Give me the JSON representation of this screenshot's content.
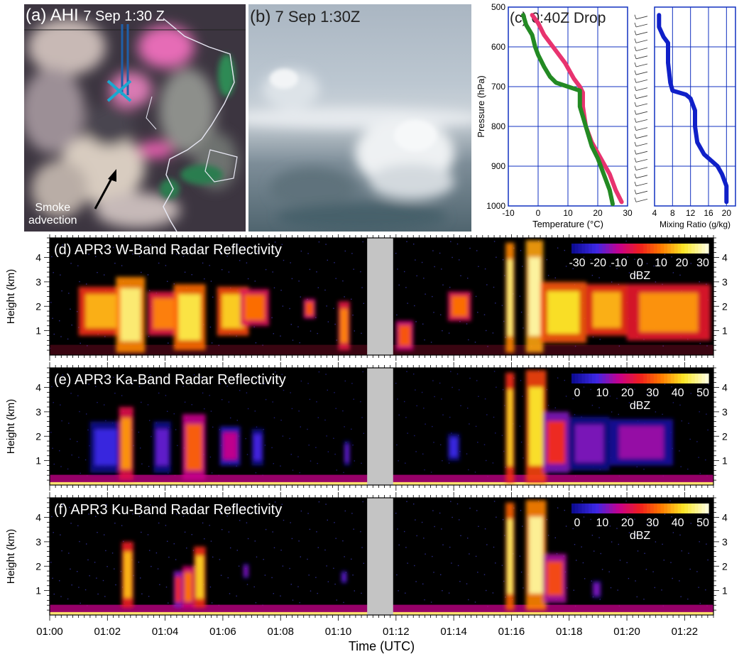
{
  "panel_a": {
    "tag": "(a)",
    "title": "AHI",
    "time": "7 Sep 1:30 Z",
    "annotation_line1": "Smoke",
    "annotation_line2": "advection"
  },
  "panel_b": {
    "tag": "(b)",
    "time": "7 Sep 1:30Z"
  },
  "chart_data": [
    {
      "type": "line",
      "panel": "(c)",
      "title": "(c)  0:40Z Drop",
      "xlabel": "Temperature (°C)",
      "ylabel": "Pressure (hPa)",
      "xlim": [
        -10,
        30
      ],
      "ylim": [
        1000,
        500
      ],
      "x_ticks": [
        -10,
        0,
        10,
        20,
        30
      ],
      "y_ticks": [
        500,
        600,
        700,
        800,
        900,
        1000
      ],
      "grid": true,
      "series": [
        {
          "name": "",
          "color": "#e8336f",
          "points": [
            [
              -2,
              520
            ],
            [
              0,
              540
            ],
            [
              2,
              570
            ],
            [
              5,
              600
            ],
            [
              9,
              640
            ],
            [
              12,
              680
            ],
            [
              14,
              700
            ],
            [
              15,
              715
            ],
            [
              15,
              750
            ],
            [
              16,
              800
            ],
            [
              18,
              840
            ],
            [
              21,
              880
            ],
            [
              24,
              920
            ],
            [
              26,
              960
            ],
            [
              28,
              990
            ]
          ]
        },
        {
          "name": "",
          "color": "#238a23",
          "points": [
            [
              -5,
              520
            ],
            [
              -4,
              545
            ],
            [
              -2,
              570
            ],
            [
              -1,
              600
            ],
            [
              0,
              620
            ],
            [
              2,
              650
            ],
            [
              4,
              675
            ],
            [
              6,
              690
            ],
            [
              10,
              700
            ],
            [
              14,
              710
            ],
            [
              14,
              750
            ],
            [
              16,
              800
            ],
            [
              18,
              850
            ],
            [
              20,
              880
            ],
            [
              22,
              920
            ],
            [
              24,
              960
            ],
            [
              25,
              995
            ]
          ]
        }
      ]
    },
    {
      "type": "line",
      "panel": "(c)",
      "xlabel": "Mixing Ratio (g/kg)",
      "xlim": [
        4,
        22
      ],
      "ylim": [
        1000,
        500
      ],
      "x_ticks": [
        4,
        8,
        12,
        16,
        20
      ],
      "grid": true,
      "series": [
        {
          "name": "",
          "color": "#1020c8",
          "points": [
            [
              5,
              520
            ],
            [
              5,
              550
            ],
            [
              6,
              575
            ],
            [
              7,
              590
            ],
            [
              7,
              640
            ],
            [
              7.5,
              690
            ],
            [
              8,
              710
            ],
            [
              11,
              720
            ],
            [
              12,
              730
            ],
            [
              13,
              760
            ],
            [
              13,
              800
            ],
            [
              13.5,
              840
            ],
            [
              15,
              870
            ],
            [
              18,
              900
            ],
            [
              19,
              920
            ],
            [
              20,
              950
            ],
            [
              20,
              990
            ]
          ]
        }
      ]
    },
    {
      "type": "heatmap",
      "panel": "(d)",
      "title": "(d) APR3 W-Band Radar Reflectivity",
      "ylabel": "Height (km)",
      "ylim": [
        0,
        4.8
      ],
      "y_ticks": [
        1,
        2,
        3,
        4
      ],
      "colorbar_ticks": [
        "-30",
        "-20",
        "-10",
        "0",
        "10",
        "20",
        "30"
      ],
      "colorbar_label": "dBZ",
      "colorbar_range": [
        -35,
        32
      ],
      "data_gap_utc_minutes": [
        11.0,
        11.9
      ],
      "cells": [
        {
          "t": [
            1.0,
            2.6
          ],
          "h": [
            0.8,
            2.8
          ],
          "dbz": 15
        },
        {
          "t": [
            2.3,
            3.3
          ],
          "h": [
            0.1,
            3.2
          ],
          "dbz": 25
        },
        {
          "t": [
            3.4,
            4.6
          ],
          "h": [
            0.8,
            2.6
          ],
          "dbz": 10
        },
        {
          "t": [
            4.3,
            5.4
          ],
          "h": [
            0.2,
            2.9
          ],
          "dbz": 22
        },
        {
          "t": [
            5.8,
            6.9
          ],
          "h": [
            0.8,
            2.8
          ],
          "dbz": 18
        },
        {
          "t": [
            6.6,
            7.6
          ],
          "h": [
            1.2,
            2.7
          ],
          "dbz": 8
        },
        {
          "t": [
            8.8,
            9.2
          ],
          "h": [
            1.5,
            2.3
          ],
          "dbz": 5
        },
        {
          "t": [
            10.0,
            10.4
          ],
          "h": [
            0.2,
            2.2
          ],
          "dbz": 10
        },
        {
          "t": [
            12.0,
            12.6
          ],
          "h": [
            0.2,
            1.4
          ],
          "dbz": 5
        },
        {
          "t": [
            13.8,
            14.6
          ],
          "h": [
            1.4,
            2.6
          ],
          "dbz": 8
        },
        {
          "t": [
            15.8,
            16.1
          ],
          "h": [
            0.1,
            4.6
          ],
          "dbz": 25
        },
        {
          "t": [
            16.5,
            17.1
          ],
          "h": [
            0.1,
            4.7
          ],
          "dbz": 28
        },
        {
          "t": [
            17.0,
            18.6
          ],
          "h": [
            0.5,
            3.0
          ],
          "dbz": 20
        },
        {
          "t": [
            18.6,
            20.0
          ],
          "h": [
            0.8,
            2.9
          ],
          "dbz": 15
        },
        {
          "t": [
            20.0,
            22.9
          ],
          "h": [
            0.6,
            2.9
          ],
          "dbz": 12
        }
      ]
    },
    {
      "type": "heatmap",
      "panel": "(e)",
      "title": "(e) APR3 Ka-Band Radar Reflectivity",
      "ylabel": "Height (km)",
      "ylim": [
        0,
        4.8
      ],
      "y_ticks": [
        1,
        2,
        3,
        4
      ],
      "colorbar_ticks": [
        "0",
        "10",
        "20",
        "30",
        "40",
        "50"
      ],
      "colorbar_label": "dBZ",
      "colorbar_range": [
        -5,
        52
      ],
      "data_gap_utc_minutes": [
        11.0,
        11.9
      ],
      "cells": [
        {
          "t": [
            1.4,
            2.5
          ],
          "h": [
            0.5,
            2.6
          ],
          "dbz": 5
        },
        {
          "t": [
            2.4,
            2.9
          ],
          "h": [
            0.2,
            3.2
          ],
          "dbz": 35
        },
        {
          "t": [
            3.6,
            4.2
          ],
          "h": [
            0.5,
            2.6
          ],
          "dbz": 8
        },
        {
          "t": [
            4.6,
            5.4
          ],
          "h": [
            0.2,
            2.9
          ],
          "dbz": 30
        },
        {
          "t": [
            5.9,
            6.6
          ],
          "h": [
            0.8,
            2.4
          ],
          "dbz": 15
        },
        {
          "t": [
            7.0,
            7.4
          ],
          "h": [
            0.8,
            2.3
          ],
          "dbz": 6
        },
        {
          "t": [
            10.2,
            10.4
          ],
          "h": [
            0.8,
            1.8
          ],
          "dbz": 8
        },
        {
          "t": [
            13.8,
            14.2
          ],
          "h": [
            1.0,
            2.1
          ],
          "dbz": 5
        },
        {
          "t": [
            15.8,
            16.1
          ],
          "h": [
            0.1,
            4.6
          ],
          "dbz": 40
        },
        {
          "t": [
            16.5,
            17.2
          ],
          "h": [
            0.1,
            4.7
          ],
          "dbz": 42
        },
        {
          "t": [
            17.1,
            18.0
          ],
          "h": [
            0.5,
            3.0
          ],
          "dbz": 25
        },
        {
          "t": [
            18.0,
            19.4
          ],
          "h": [
            0.6,
            2.8
          ],
          "dbz": 10
        },
        {
          "t": [
            19.4,
            21.6
          ],
          "h": [
            0.8,
            2.7
          ],
          "dbz": 12
        }
      ]
    },
    {
      "type": "heatmap",
      "panel": "(f)",
      "title": "(f) APR3 Ku-Band Radar Reflectivity",
      "xlabel": "Time (UTC)",
      "ylabel": "Height (km)",
      "ylim": [
        0,
        4.8
      ],
      "y_ticks": [
        1,
        2,
        3,
        4
      ],
      "x_ticks": [
        "01:00",
        "01:02",
        "01:04",
        "01:06",
        "01:08",
        "01:10",
        "01:12",
        "01:14",
        "01:16",
        "01:18",
        "01:20",
        "01:22"
      ],
      "colorbar_ticks": [
        "0",
        "10",
        "20",
        "30",
        "40",
        "50"
      ],
      "colorbar_label": "dBZ",
      "colorbar_range": [
        -5,
        52
      ],
      "data_gap_utc_minutes": [
        11.0,
        11.9
      ],
      "cells": [
        {
          "t": [
            2.5,
            2.9
          ],
          "h": [
            0.3,
            3.0
          ],
          "dbz": 38
        },
        {
          "t": [
            4.3,
            4.6
          ],
          "h": [
            0.3,
            1.8
          ],
          "dbz": 25
        },
        {
          "t": [
            4.6,
            5.0
          ],
          "h": [
            0.3,
            2.0
          ],
          "dbz": 32
        },
        {
          "t": [
            5.0,
            5.4
          ],
          "h": [
            0.3,
            2.8
          ],
          "dbz": 40
        },
        {
          "t": [
            6.7,
            6.9
          ],
          "h": [
            1.5,
            2.1
          ],
          "dbz": 10
        },
        {
          "t": [
            10.1,
            10.3
          ],
          "h": [
            1.3,
            1.8
          ],
          "dbz": 8
        },
        {
          "t": [
            15.8,
            16.1
          ],
          "h": [
            0.2,
            4.6
          ],
          "dbz": 45
        },
        {
          "t": [
            16.5,
            17.2
          ],
          "h": [
            0.2,
            4.7
          ],
          "dbz": 48
        },
        {
          "t": [
            17.1,
            17.9
          ],
          "h": [
            0.5,
            2.5
          ],
          "dbz": 28
        },
        {
          "t": [
            18.8,
            19.1
          ],
          "h": [
            0.7,
            1.4
          ],
          "dbz": 10
        }
      ]
    }
  ]
}
